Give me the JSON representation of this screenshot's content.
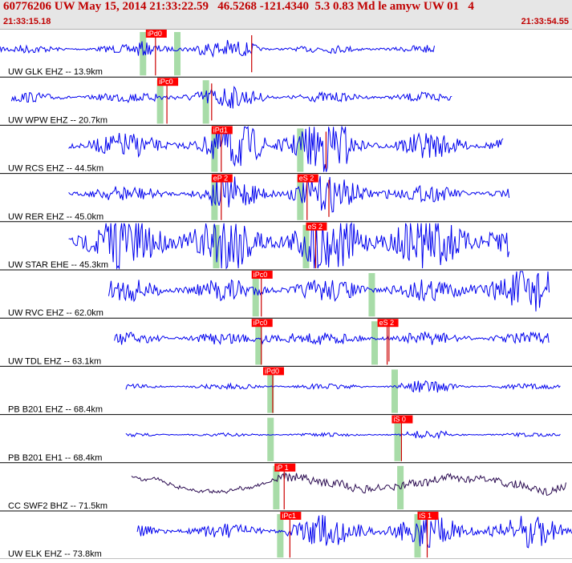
{
  "header": {
    "title": "60776206 UW May 15, 2014 21:33:22.59   46.5268 -121.4340  5.3 0.83 Md le amyw UW 01   4",
    "time_start": "21:33:15.18",
    "time_end": "21:33:54.55"
  },
  "colors": {
    "trace": "#0000ee",
    "trace_broadband": "#2a0a50",
    "pick_box": "#ff0000",
    "pick_line": "#cc0000",
    "window": "#a8dca8",
    "separator": "#000000",
    "label_text": "#000000",
    "pick_text": "#ffffff"
  },
  "channels": [
    {
      "label": "UW GLK EHZ -- 13.9km",
      "start": 0.0,
      "end": 0.76,
      "amp": 0.18,
      "burst": [
        0.24,
        0.45
      ],
      "color": "trace",
      "picks": [
        {
          "label": "iPd0",
          "pos": 0.255
        }
      ],
      "windows": [
        0.25,
        0.31
      ],
      "extra_lines": [
        0.44
      ]
    },
    {
      "label": "UW WPW EHZ -- 20.7km",
      "start": 0.02,
      "end": 0.79,
      "amp": 0.22,
      "burst": [
        0.27,
        0.47
      ],
      "color": "trace",
      "picks": [
        {
          "label": "iPc0",
          "pos": 0.275
        }
      ],
      "windows": [
        0.28,
        0.36
      ],
      "extra_lines": [
        0.37
      ]
    },
    {
      "label": "UW RCS EHZ -- 44.5km",
      "start": 0.12,
      "end": 0.88,
      "amp": 0.55,
      "burst": [
        0.37,
        0.61
      ],
      "color": "trace",
      "picks": [
        {
          "label": "iPd1",
          "pos": 0.37
        }
      ],
      "windows": [
        0.375,
        0.525
      ],
      "extra_lines": [
        0.57
      ]
    },
    {
      "label": "UW RER EHZ -- 45.0km",
      "start": 0.12,
      "end": 0.89,
      "amp": 0.35,
      "burst": [
        0.37,
        0.68
      ],
      "color": "trace",
      "picks": [
        {
          "label": "eP 2",
          "pos": 0.37
        },
        {
          "label": "eS 2",
          "pos": 0.52
        }
      ],
      "windows": [
        0.375,
        0.525
      ],
      "extra_lines": [
        0.575
      ]
    },
    {
      "label": "UW STAR EHE -- 45.3km",
      "start": 0.12,
      "end": 0.89,
      "amp": 0.6,
      "burst": [
        0.12,
        0.89
      ],
      "color": "trace",
      "picks": [
        {
          "label": "eS 2",
          "pos": 0.535
        }
      ],
      "windows": [
        0.378,
        0.535
      ],
      "extra_lines": []
    },
    {
      "label": "UW RVC EHZ -- 62.0km",
      "start": 0.19,
      "end": 0.96,
      "amp": 0.5,
      "burst": [
        0.82,
        0.96
      ],
      "color": "trace",
      "picks": [
        {
          "label": "iPc0",
          "pos": 0.44
        }
      ],
      "windows": [
        0.447,
        0.65
      ],
      "extra_lines": []
    },
    {
      "label": "UW TDL EHZ -- 63.1km",
      "start": 0.2,
      "end": 0.96,
      "amp": 0.28,
      "burst": [
        0.455,
        0.52
      ],
      "color": "trace",
      "picks": [
        {
          "label": "iPc0",
          "pos": 0.44
        },
        {
          "label": "eS 2",
          "pos": 0.66
        }
      ],
      "windows": [
        0.452,
        0.655
      ],
      "extra_lines": [
        0.68
      ]
    },
    {
      "label": "PB B201 EHZ -- 68.4km",
      "start": 0.22,
      "end": 0.98,
      "amp": 0.12,
      "burst": [
        0.7,
        0.8
      ],
      "color": "trace",
      "picks": [
        {
          "label": "iPd0",
          "pos": 0.46
        }
      ],
      "windows": [
        0.473,
        0.69
      ],
      "extra_lines": []
    },
    {
      "label": "PB B201 EH1 -- 68.4km",
      "start": 0.22,
      "end": 0.98,
      "amp": 0.08,
      "burst": [
        0.705,
        0.78
      ],
      "color": "trace",
      "picks": [
        {
          "label": "iS 0",
          "pos": 0.685
        }
      ],
      "windows": [
        0.473,
        0.695
      ],
      "extra_lines": []
    },
    {
      "label": "CC SWF2 BHZ -- 71.5km",
      "start": 0.23,
      "end": 0.99,
      "amp": 0.5,
      "burst": [
        0.48,
        0.99
      ],
      "color": "trace_broadband",
      "picks": [
        {
          "label": "iP 1",
          "pos": 0.48
        }
      ],
      "windows": [
        0.483,
        0.7
      ],
      "extra_lines": []
    },
    {
      "label": "UW ELK EHZ -- 73.8km",
      "start": 0.24,
      "end": 1.0,
      "amp": 0.32,
      "burst": [
        0.5,
        1.0
      ],
      "color": "trace",
      "picks": [
        {
          "label": "iPc1",
          "pos": 0.49
        },
        {
          "label": "iS 1",
          "pos": 0.73
        }
      ],
      "windows": [
        0.49,
        0.73
      ],
      "extra_lines": []
    }
  ]
}
